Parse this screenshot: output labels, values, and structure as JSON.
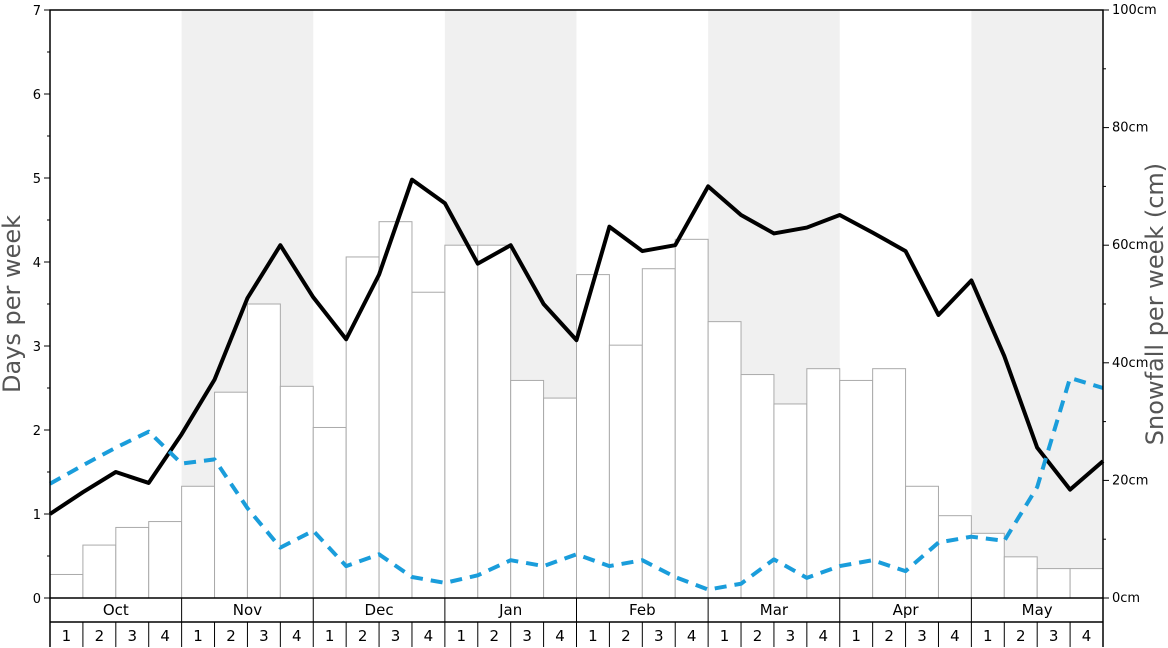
{
  "chart_data": {
    "type": "bar+line",
    "ylabel_left": "Days per week",
    "ylabel_right": "Snowfall per week (cm)",
    "ylim_left": [
      0,
      7
    ],
    "ylim_right": [
      0,
      100
    ],
    "left_ticks": [
      "0",
      "1",
      "2",
      "3",
      "4",
      "5",
      "6",
      "7"
    ],
    "right_ticks": [
      "0cm",
      "20cm",
      "40cm",
      "60cm",
      "80cm",
      "100cm"
    ],
    "months": [
      "Oct",
      "Nov",
      "Dec",
      "Jan",
      "Feb",
      "Mar",
      "Apr",
      "May"
    ],
    "weeks": [
      "1",
      "2",
      "3",
      "4"
    ],
    "shaded_months": [
      "Nov",
      "Jan",
      "Mar",
      "May"
    ],
    "snowfall_cm": [
      4,
      9,
      12,
      13,
      19,
      35,
      50,
      36,
      29,
      58,
      64,
      52,
      60,
      60,
      37,
      34,
      55,
      43,
      56,
      61,
      47,
      38,
      33,
      39,
      37,
      39,
      19,
      14,
      11,
      7,
      5,
      5
    ],
    "series": [
      {
        "style": "solid",
        "color": "#000000",
        "values": [
          1.0,
          1.26,
          1.5,
          1.37,
          1.95,
          2.6,
          3.57,
          4.2,
          3.58,
          3.08,
          3.85,
          4.98,
          4.7,
          3.98,
          4.2,
          3.5,
          3.07,
          4.42,
          4.13,
          4.2,
          4.9,
          4.56,
          4.34,
          4.41,
          4.56,
          4.35,
          4.13,
          3.37,
          3.78,
          2.88,
          1.79,
          1.29,
          1.63
        ]
      },
      {
        "style": "dashed",
        "color": "#1a9ddb",
        "values": [
          1.36,
          1.58,
          1.79,
          1.98,
          1.6,
          1.65,
          1.07,
          0.6,
          0.8,
          0.38,
          0.52,
          0.25,
          0.18,
          0.27,
          0.45,
          0.38,
          0.52,
          0.38,
          0.45,
          0.25,
          0.1,
          0.17,
          0.46,
          0.24,
          0.38,
          0.45,
          0.32,
          0.66,
          0.73,
          0.68,
          1.32,
          2.62,
          2.5
        ]
      }
    ]
  }
}
